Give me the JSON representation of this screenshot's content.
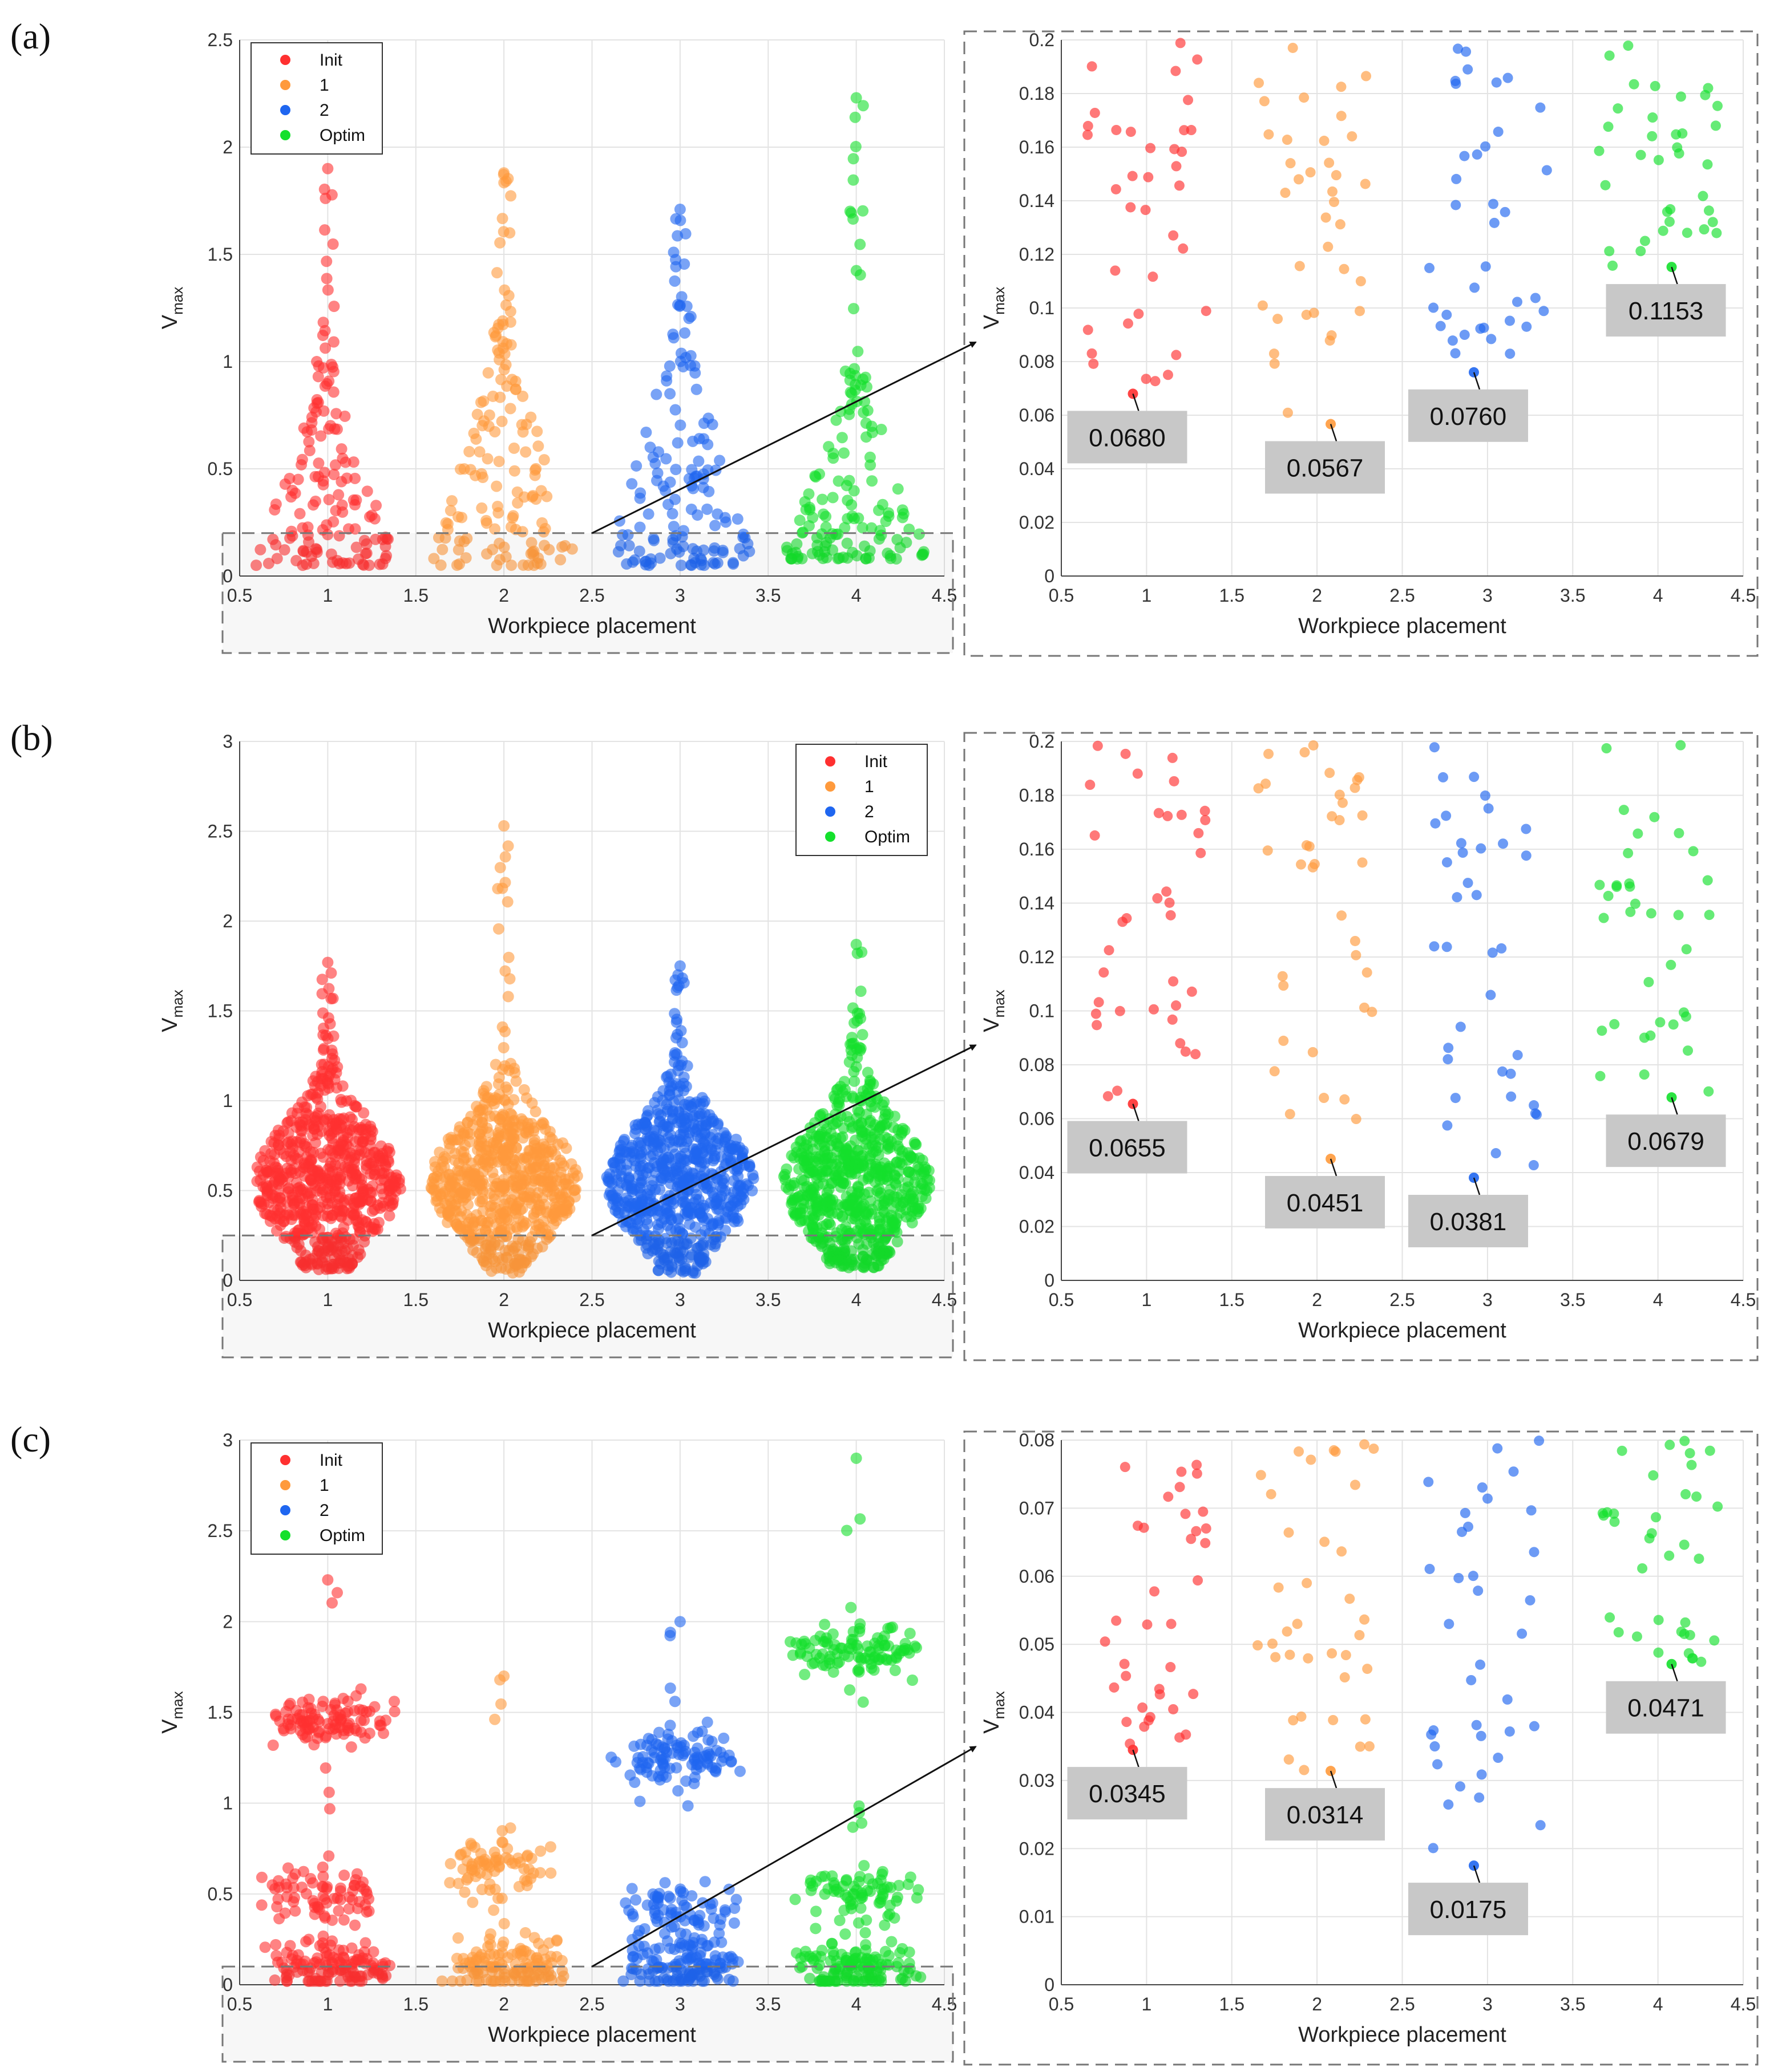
{
  "panels": [
    {
      "label": "(a)",
      "legend": true
    },
    {
      "label": "(b)",
      "legend": true
    },
    {
      "label": "(c)",
      "legend": true
    }
  ],
  "legend_entries": [
    "Init",
    "1",
    "2",
    "Optim"
  ],
  "series_colors": {
    "Init": "#ff3030",
    "1": "#ff9a3c",
    "2": "#1f66f0",
    "Optim": "#14e02c"
  },
  "chart_data": [
    {
      "type": "scatter",
      "subtype": "swarm",
      "panel": "(a)",
      "view": "main",
      "xlabel": "Workpiece placement",
      "ylabel": "V",
      "ylabel_sub": "max",
      "xlim": [
        0.5,
        4.5
      ],
      "ylim": [
        0,
        2.5
      ],
      "xticks": [
        "0.5",
        "1",
        "1.5",
        "2",
        "2.5",
        "3",
        "3.5",
        "4",
        "4.5"
      ],
      "yticks": [
        "0",
        "0.5",
        "1",
        "1.5",
        "2",
        "2.5"
      ],
      "legend_position": "top-left",
      "series": [
        {
          "name": "Init",
          "x": 1,
          "approx_max": 1.9,
          "approx_min": 0.05,
          "bulk_range": [
            0.05,
            1.0
          ]
        },
        {
          "name": "1",
          "x": 2,
          "approx_max": 1.88,
          "approx_min": 0.05,
          "bulk_range": [
            0.05,
            1.2
          ]
        },
        {
          "name": "2",
          "x": 3,
          "approx_max": 1.71,
          "approx_min": 0.05,
          "bulk_range": [
            0.05,
            1.25
          ]
        },
        {
          "name": "Optim",
          "x": 4,
          "approx_max": 2.23,
          "approx_min": 0.08,
          "bulk_range": [
            0.08,
            1.0
          ]
        }
      ],
      "zoom_threshold": 0.2
    },
    {
      "type": "scatter",
      "subtype": "swarm",
      "panel": "(a)",
      "view": "zoom",
      "xlabel": "Workpiece placement",
      "ylabel": "V",
      "ylabel_sub": "max",
      "xlim": [
        0.5,
        4.5
      ],
      "ylim": [
        0,
        0.2
      ],
      "xticks": [
        "0.5",
        "1",
        "1.5",
        "2",
        "2.5",
        "3",
        "3.5",
        "4",
        "4.5"
      ],
      "yticks": [
        "0",
        "0.02",
        "0.04",
        "0.06",
        "0.08",
        "0.1",
        "0.12",
        "0.14",
        "0.16",
        "0.18",
        "0.2"
      ],
      "series": [
        {
          "name": "Init",
          "x": 1,
          "min": 0.068
        },
        {
          "name": "1",
          "x": 2,
          "min": 0.0567
        },
        {
          "name": "2",
          "x": 3,
          "min": 0.076
        },
        {
          "name": "Optim",
          "x": 4,
          "min": 0.1153
        }
      ],
      "annotations": [
        "0.0680",
        "0.0567",
        "0.0760",
        "0.1153"
      ]
    },
    {
      "type": "scatter",
      "subtype": "swarm",
      "panel": "(b)",
      "view": "main",
      "xlabel": "Workpiece placement",
      "ylabel": "V",
      "ylabel_sub": "max",
      "xlim": [
        0.5,
        4.5
      ],
      "ylim": [
        0,
        3
      ],
      "xticks": [
        "0.5",
        "1",
        "1.5",
        "2",
        "2.5",
        "3",
        "3.5",
        "4",
        "4.5"
      ],
      "yticks": [
        "0",
        "0.5",
        "1",
        "1.5",
        "2",
        "2.5",
        "3"
      ],
      "legend_position": "top-right",
      "series": [
        {
          "name": "Init",
          "x": 1,
          "approx_max": 1.77,
          "approx_min": 0.06,
          "bulk_range": [
            0.06,
            1.3
          ]
        },
        {
          "name": "1",
          "x": 2,
          "approx_max": 2.53,
          "approx_min": 0.04,
          "bulk_range": [
            0.04,
            1.3
          ]
        },
        {
          "name": "2",
          "x": 3,
          "approx_max": 1.75,
          "approx_min": 0.04,
          "bulk_range": [
            0.04,
            1.3
          ]
        },
        {
          "name": "Optim",
          "x": 4,
          "approx_max": 1.87,
          "approx_min": 0.07,
          "bulk_range": [
            0.07,
            1.3
          ]
        }
      ],
      "zoom_threshold": 0.25
    },
    {
      "type": "scatter",
      "subtype": "swarm",
      "panel": "(b)",
      "view": "zoom",
      "xlabel": "Workpiece placement",
      "ylabel": "V",
      "ylabel_sub": "max",
      "xlim": [
        0.5,
        4.5
      ],
      "ylim": [
        0,
        0.2
      ],
      "xticks": [
        "0.5",
        "1",
        "1.5",
        "2",
        "2.5",
        "3",
        "3.5",
        "4",
        "4.5"
      ],
      "yticks": [
        "0",
        "0.02",
        "0.04",
        "0.06",
        "0.08",
        "0.1",
        "0.12",
        "0.14",
        "0.16",
        "0.18",
        "0.2"
      ],
      "series": [
        {
          "name": "Init",
          "x": 1,
          "min": 0.0655
        },
        {
          "name": "1",
          "x": 2,
          "min": 0.0451
        },
        {
          "name": "2",
          "x": 3,
          "min": 0.0381
        },
        {
          "name": "Optim",
          "x": 4,
          "min": 0.0679
        }
      ],
      "annotations": [
        "0.0655",
        "0.0451",
        "0.0381",
        "0.0679"
      ]
    },
    {
      "type": "scatter",
      "subtype": "swarm",
      "panel": "(c)",
      "view": "main",
      "xlabel": "Workpiece placement",
      "ylabel": "V",
      "ylabel_sub": "max",
      "xlim": [
        0.5,
        4.5
      ],
      "ylim": [
        0,
        3
      ],
      "xticks": [
        "0.5",
        "1",
        "1.5",
        "2",
        "2.5",
        "3",
        "3.5",
        "4",
        "4.5"
      ],
      "yticks": [
        "0",
        "0.5",
        "1",
        "1.5",
        "2",
        "2.5",
        "3"
      ],
      "legend_position": "top-left",
      "series": [
        {
          "name": "Init",
          "x": 1,
          "approx_max": 2.23,
          "approx_min": 0.03,
          "clusters": [
            0.1,
            0.5,
            1.45
          ]
        },
        {
          "name": "1",
          "x": 2,
          "approx_max": 1.7,
          "approx_min": 0.03,
          "clusters": [
            0.1,
            0.65
          ]
        },
        {
          "name": "2",
          "x": 3,
          "approx_max": 2.0,
          "approx_min": 0.02,
          "clusters": [
            0.1,
            0.4,
            1.25
          ]
        },
        {
          "name": "Optim",
          "x": 4,
          "approx_max": 2.9,
          "approx_min": 0.05,
          "clusters": [
            0.1,
            0.5,
            1.85
          ]
        }
      ],
      "zoom_threshold": 0.1
    },
    {
      "type": "scatter",
      "subtype": "swarm",
      "panel": "(c)",
      "view": "zoom",
      "xlabel": "Workpiece placement",
      "ylabel": "V",
      "ylabel_sub": "max",
      "xlim": [
        0.5,
        4.5
      ],
      "ylim": [
        0,
        0.08
      ],
      "xticks": [
        "0.5",
        "1",
        "1.5",
        "2",
        "2.5",
        "3",
        "3.5",
        "4",
        "4.5"
      ],
      "yticks": [
        "0",
        "0.01",
        "0.02",
        "0.03",
        "0.04",
        "0.05",
        "0.06",
        "0.07",
        "0.08"
      ],
      "series": [
        {
          "name": "Init",
          "x": 1,
          "min": 0.0345
        },
        {
          "name": "1",
          "x": 2,
          "min": 0.0314
        },
        {
          "name": "2",
          "x": 3,
          "min": 0.0175
        },
        {
          "name": "Optim",
          "x": 4,
          "min": 0.0471
        }
      ],
      "annotations": [
        "0.0345",
        "0.0314",
        "0.0175",
        "0.0471"
      ]
    }
  ]
}
